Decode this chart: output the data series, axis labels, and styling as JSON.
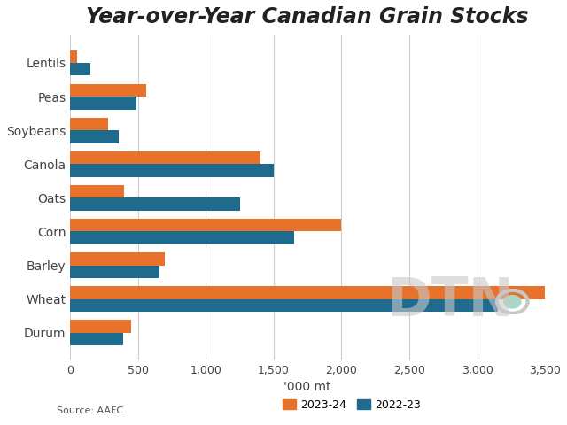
{
  "title": "Year-over-Year Canadian Grain Stocks",
  "categories": [
    "Durum",
    "Wheat",
    "Barley",
    "Corn",
    "Oats",
    "Canola",
    "Soybeans",
    "Peas",
    "Lentils"
  ],
  "values_2324": [
    450,
    3500,
    700,
    2000,
    400,
    1400,
    280,
    560,
    50
  ],
  "values_2223": [
    390,
    3150,
    660,
    1650,
    1250,
    1500,
    360,
    490,
    150
  ],
  "color_2324": "#E8722A",
  "color_2223": "#1F6B8E",
  "xlabel": "'000 mt",
  "source": "Source: AAFC",
  "legend_2324": "2023-24",
  "legend_2223": "2022-23",
  "xlim": [
    0,
    3500
  ],
  "xticks": [
    0,
    500,
    1000,
    1500,
    2000,
    2500,
    3000,
    3500
  ],
  "xtick_labels": [
    "0",
    "500",
    "1,000",
    "1,500",
    "2,000",
    "2,500",
    "3,000",
    "3,500"
  ],
  "background_color": "#FFFFFF",
  "grid_color": "#CCCCCC",
  "bar_height": 0.38,
  "title_fontsize": 17,
  "label_fontsize": 10,
  "tick_fontsize": 9,
  "source_fontsize": 8,
  "dtn_color": "#C8C8C8"
}
